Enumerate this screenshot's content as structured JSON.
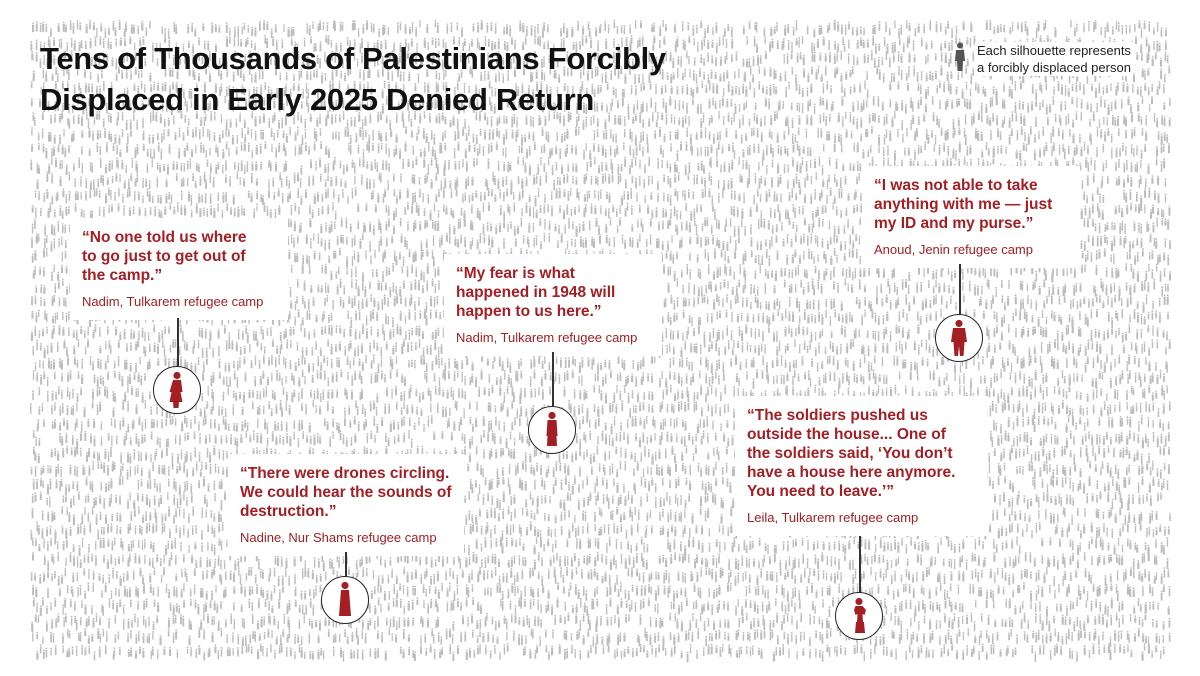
{
  "title": {
    "lines": [
      "Tens of Thousands of Palestinians Forcibly",
      "Displaced in Early 2025 Denied Return"
    ]
  },
  "legend": {
    "icon": "person-silhouette-icon",
    "lines": [
      "Each silhouette represents",
      "a forcibly displaced person"
    ]
  },
  "colors": {
    "accent": "#a31f24",
    "crowd": "#bdbdbd",
    "text": "#111111"
  },
  "quotes": [
    {
      "lines": [
        "“No one told us where",
        "to go just to get out of",
        "the camp.”"
      ],
      "source": "Nadim, Tulkarem refugee camp",
      "icon": "woman-silhouette-icon"
    },
    {
      "lines": [
        "“There were drones circling.",
        "We could hear the sounds of",
        "destruction.”"
      ],
      "source": "Nadine, Nur Shams refugee camp",
      "icon": "woman-in-robe-silhouette-icon"
    },
    {
      "lines": [
        "“My fear is what",
        "happened in 1948 will",
        "happen to us here.”"
      ],
      "source": "Nadim, Tulkarem refugee camp",
      "icon": "woman-in-dress-silhouette-icon"
    },
    {
      "lines": [
        "“I was not able to take",
        "anything with me — just",
        "my ID and my purse.”"
      ],
      "source": "Anoud, Jenin refugee camp",
      "icon": "man-silhouette-icon"
    },
    {
      "lines": [
        "“The soldiers pushed us",
        "outside the house... One of",
        "the soldiers said, ‘You don’t",
        "have a house here anymore.",
        "You need to leave.’”"
      ],
      "source": "Leila, Tulkarem refugee camp",
      "icon": "woman-hands-on-hips-silhouette-icon"
    }
  ]
}
